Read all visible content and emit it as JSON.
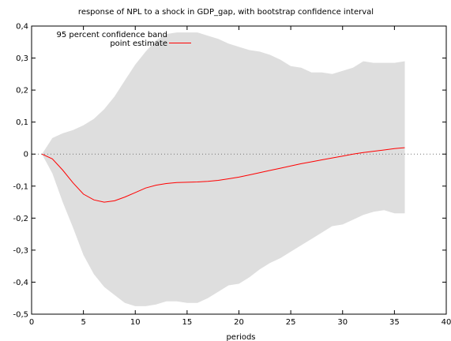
{
  "chart_data": {
    "type": "area",
    "title": "response of NPL to a shock in GDP_gap, with bootstrap confidence interval",
    "xlabel": "periods",
    "ylabel": "",
    "xlim": [
      0,
      40
    ],
    "ylim": [
      -0.5,
      0.4
    ],
    "xticks": [
      0,
      5,
      10,
      15,
      20,
      25,
      30,
      35,
      40
    ],
    "xtick_labels": [
      "0",
      "5",
      "10",
      "15",
      "20",
      "25",
      "30",
      "35",
      "40"
    ],
    "yticks": [
      -0.5,
      -0.4,
      -0.3,
      -0.2,
      -0.1,
      0,
      0.1,
      0.2,
      0.3,
      0.4
    ],
    "ytick_labels": [
      "-0,5",
      "-0,4",
      "-0,3",
      "-0,2",
      "-0,1",
      "0",
      "0,1",
      "0,2",
      "0,3",
      "0,4"
    ],
    "legend_position": "top-left",
    "zero_line": true,
    "grid": false,
    "colors": {
      "band": "#dedede",
      "point": "#ff0000"
    },
    "x": [
      1,
      2,
      3,
      4,
      5,
      6,
      7,
      8,
      9,
      10,
      11,
      12,
      13,
      14,
      15,
      16,
      17,
      18,
      19,
      20,
      21,
      22,
      23,
      24,
      25,
      26,
      27,
      28,
      29,
      30,
      31,
      32,
      33,
      34,
      35,
      36
    ],
    "series": [
      {
        "name": "95 percent confidence band",
        "kind": "band",
        "upper": [
          0.0,
          0.05,
          0.065,
          0.075,
          0.09,
          0.11,
          0.14,
          0.18,
          0.23,
          0.28,
          0.32,
          0.355,
          0.375,
          0.38,
          0.38,
          0.38,
          0.37,
          0.36,
          0.345,
          0.335,
          0.325,
          0.32,
          0.31,
          0.295,
          0.275,
          0.27,
          0.255,
          0.255,
          0.25,
          0.26,
          0.27,
          0.29,
          0.285,
          0.285,
          0.285,
          0.29
        ],
        "lower": [
          0.0,
          -0.06,
          -0.15,
          -0.23,
          -0.315,
          -0.375,
          -0.415,
          -0.44,
          -0.465,
          -0.475,
          -0.475,
          -0.47,
          -0.46,
          -0.46,
          -0.465,
          -0.465,
          -0.45,
          -0.43,
          -0.41,
          -0.405,
          -0.385,
          -0.36,
          -0.34,
          -0.325,
          -0.305,
          -0.285,
          -0.265,
          -0.245,
          -0.225,
          -0.22,
          -0.205,
          -0.19,
          -0.18,
          -0.175,
          -0.185,
          -0.185
        ]
      },
      {
        "name": "point estimate",
        "kind": "line",
        "values": [
          0.0,
          -0.015,
          -0.05,
          -0.09,
          -0.125,
          -0.143,
          -0.15,
          -0.146,
          -0.134,
          -0.12,
          -0.106,
          -0.097,
          -0.092,
          -0.089,
          -0.088,
          -0.087,
          -0.085,
          -0.082,
          -0.077,
          -0.072,
          -0.065,
          -0.058,
          -0.051,
          -0.044,
          -0.037,
          -0.03,
          -0.024,
          -0.018,
          -0.012,
          -0.006,
          0.0,
          0.005,
          0.009,
          0.013,
          0.017,
          0.02
        ]
      }
    ]
  }
}
